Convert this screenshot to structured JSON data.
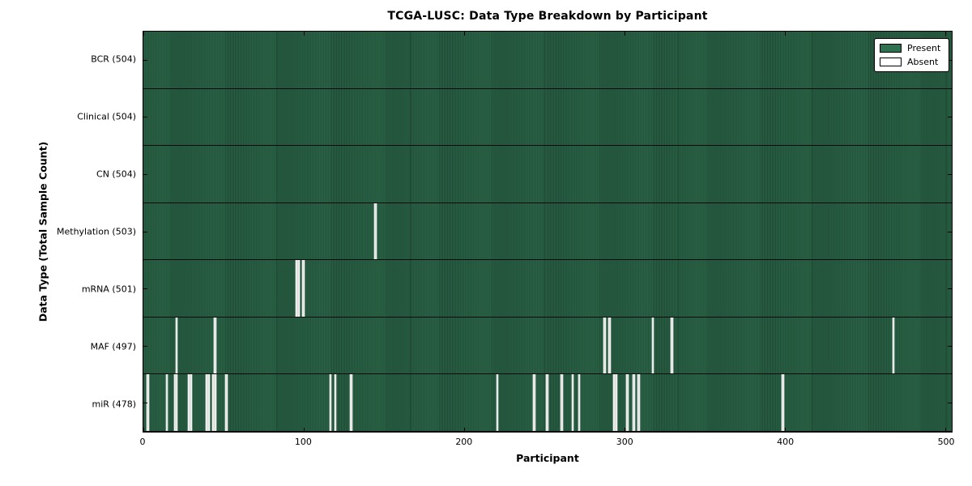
{
  "title": "TCGA-LUSC: Data Type Breakdown by Participant",
  "chart_data": {
    "type": "heatmap",
    "title": "TCGA-LUSC: Data Type Breakdown by Participant",
    "xlabel": "Participant",
    "ylabel": "Data Type (Total Sample Count)",
    "x_range": [
      0,
      504
    ],
    "x_ticks": [
      0,
      100,
      200,
      300,
      400,
      500
    ],
    "grid": false,
    "legend_position": "upper right",
    "legend": [
      {
        "label": "Present",
        "color": "#2e7150"
      },
      {
        "label": "Absent",
        "color": "#ffffff"
      }
    ],
    "colors": {
      "present": "#2e7150",
      "present_edge": "#1d4a33",
      "absent": "#ededed",
      "plot_border": "#000000",
      "background": "#ffffff"
    },
    "rows": [
      {
        "label": "BCR",
        "total": 504,
        "display": "BCR (504)",
        "absent_participants": []
      },
      {
        "label": "Clinical",
        "total": 504,
        "display": "Clinical (504)",
        "absent_participants": []
      },
      {
        "label": "CN",
        "total": 504,
        "display": "CN (504)",
        "absent_participants": []
      },
      {
        "label": "Methylation",
        "total": 503,
        "display": "Methylation (503)",
        "absent_participants": [
          144
        ]
      },
      {
        "label": "mRNA",
        "total": 501,
        "display": "mRNA (501)",
        "absent_participants": [
          95,
          96,
          99
        ]
      },
      {
        "label": "MAF",
        "total": 497,
        "display": "MAF (497)",
        "absent_participants": [
          20,
          44,
          287,
          290,
          317,
          329,
          467
        ]
      },
      {
        "label": "miR",
        "total": 478,
        "display": "miR (478)",
        "absent_participants": [
          2,
          14,
          19,
          20,
          28,
          29,
          39,
          40,
          43,
          44,
          51,
          116,
          119,
          129,
          220,
          243,
          251,
          260,
          267,
          271,
          293,
          294,
          301,
          305,
          308,
          398
        ]
      }
    ]
  }
}
